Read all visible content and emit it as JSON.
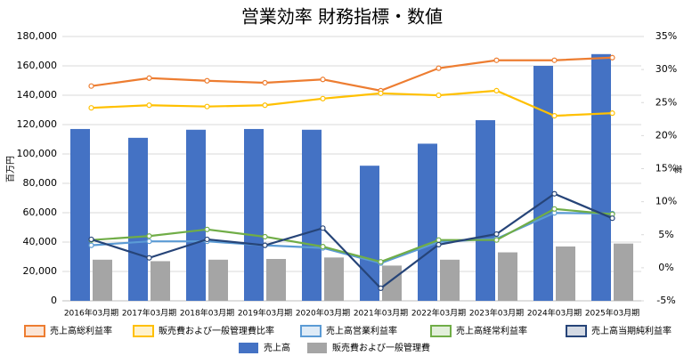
{
  "chart_data": {
    "type": "combo",
    "title": "営業効率 財務指標・数値",
    "y_label": "百万円",
    "y2_label": "率",
    "categories": [
      "2016年03月期",
      "2017年03月期",
      "2018年03月期",
      "2019年03月期",
      "2020年03月期",
      "2021年03月期",
      "2022年03月期",
      "2023年03月期",
      "2024年03月期",
      "2025年03月期"
    ],
    "ylim": [
      0,
      180000
    ],
    "yticks": [
      0,
      {
        "value": 20000,
        "label": "20,000"
      },
      {
        "value": 40000,
        "label": "40,000"
      },
      {
        "value": 60000,
        "label": "60,000"
      },
      {
        "value": 80000,
        "label": "80,000"
      },
      {
        "value": 100000,
        "label": "100,000"
      },
      {
        "value": 120000,
        "label": "120,000"
      },
      {
        "value": 140000,
        "label": "140,000"
      },
      {
        "value": 160000,
        "label": "160,000"
      },
      {
        "value": 180000,
        "label": "180,000"
      }
    ],
    "y2lim": [
      -5,
      35
    ],
    "y2ticks": [
      {
        "value": -5,
        "label": "-5%"
      },
      {
        "value": 0,
        "label": "0%"
      },
      {
        "value": 5,
        "label": "5%"
      },
      {
        "value": 10,
        "label": "10%"
      },
      {
        "value": 15,
        "label": "15%"
      },
      {
        "value": 20,
        "label": "20%"
      },
      {
        "value": 25,
        "label": "25%"
      },
      {
        "value": 30,
        "label": "30%"
      },
      {
        "value": 35,
        "label": "35%"
      }
    ],
    "grid": true,
    "series": [
      {
        "name": "売上高総利益率",
        "type": "line",
        "axis": "y2",
        "color": "#ed7d31",
        "values": [
          27.5,
          28.7,
          28.3,
          28.0,
          28.5,
          26.8,
          30.2,
          31.4,
          31.4,
          31.8
        ]
      },
      {
        "name": "販売費および一般管理費比率",
        "type": "line",
        "axis": "y2",
        "color": "#ffc000",
        "values": [
          24.2,
          24.6,
          24.4,
          24.6,
          25.6,
          26.4,
          26.1,
          26.8,
          23.0,
          23.4
        ]
      },
      {
        "name": "売上高営業利益率",
        "type": "line",
        "axis": "y2",
        "color": "#5b9bd5",
        "values": [
          3.4,
          4.0,
          4.0,
          3.4,
          3.0,
          0.7,
          3.9,
          4.4,
          8.3,
          8.2
        ]
      },
      {
        "name": "売上高経常利益率",
        "type": "line",
        "axis": "y2",
        "color": "#70ad47",
        "values": [
          4.2,
          4.8,
          5.8,
          4.7,
          3.2,
          0.9,
          4.2,
          4.2,
          8.9,
          8.1
        ]
      },
      {
        "name": "売上高当期純利益率",
        "type": "line",
        "axis": "y2",
        "color": "#264478",
        "values": [
          4.3,
          1.5,
          4.3,
          3.4,
          6.0,
          -3.1,
          3.5,
          5.1,
          11.2,
          7.5
        ]
      },
      {
        "name": "売上高",
        "type": "bar",
        "color": "#4472c4",
        "values": [
          117000,
          111000,
          116500,
          117000,
          116500,
          92000,
          107000,
          123000,
          160000,
          168000
        ]
      },
      {
        "name": "販売費および一般管理費",
        "type": "bar",
        "color": "#a5a5a5",
        "values": [
          28000,
          27000,
          28000,
          28500,
          29500,
          24000,
          28000,
          33000,
          37000,
          39000
        ]
      }
    ]
  }
}
